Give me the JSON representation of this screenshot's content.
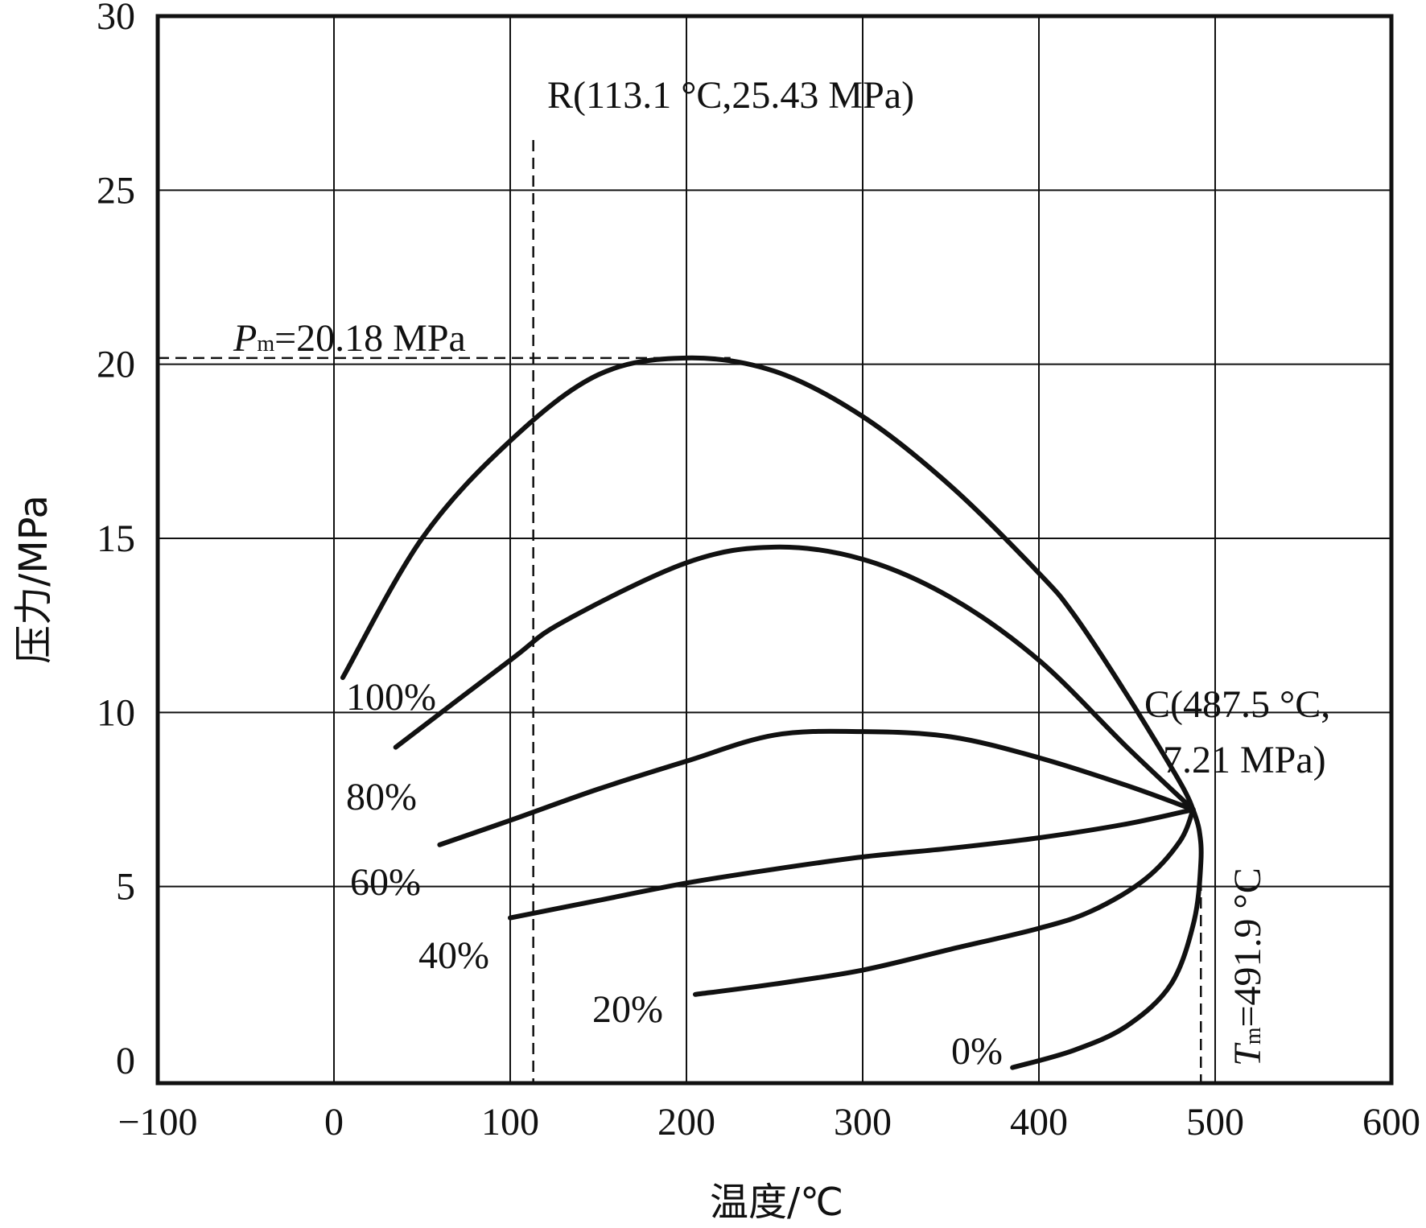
{
  "chart_data": {
    "type": "line",
    "xlabel": "温度/℃",
    "ylabel": "压力/MPa",
    "xlim": [
      -100,
      600
    ],
    "ylim": [
      -0.5,
      30
    ],
    "x_ticks": [
      {
        "value": -100,
        "label": "−100"
      },
      {
        "value": 0,
        "label": "0"
      },
      {
        "value": 100,
        "label": "100"
      },
      {
        "value": 200,
        "label": "200"
      },
      {
        "value": 300,
        "label": "300"
      },
      {
        "value": 400,
        "label": "400"
      },
      {
        "value": 500,
        "label": "500"
      },
      {
        "value": 600,
        "label": "600"
      }
    ],
    "y_ticks": [
      {
        "value": 0,
        "label": "0"
      },
      {
        "value": 5,
        "label": "5"
      },
      {
        "value": 10,
        "label": "10"
      },
      {
        "value": 15,
        "label": "15"
      },
      {
        "value": 20,
        "label": "20"
      },
      {
        "value": 25,
        "label": "25"
      },
      {
        "value": 30,
        "label": "30"
      }
    ],
    "grid": true,
    "series": [
      {
        "name": "100%",
        "x": [
          5,
          50,
          100,
          150,
          200,
          250,
          300,
          350,
          400,
          420,
          450,
          480,
          487.5
        ],
        "y": [
          11.0,
          15.0,
          17.8,
          19.7,
          20.18,
          19.8,
          18.5,
          16.5,
          14.0,
          12.8,
          10.5,
          8.0,
          7.21
        ]
      },
      {
        "name": "80%",
        "x": [
          35,
          100,
          130,
          200,
          250,
          300,
          350,
          400,
          450,
          487.5
        ],
        "y": [
          9.0,
          11.5,
          12.6,
          14.3,
          14.75,
          14.4,
          13.3,
          11.5,
          9.0,
          7.21
        ]
      },
      {
        "name": "60%",
        "x": [
          60,
          100,
          150,
          200,
          250,
          300,
          350,
          400,
          450,
          487.5
        ],
        "y": [
          6.2,
          6.9,
          7.8,
          8.6,
          9.35,
          9.45,
          9.3,
          8.7,
          7.9,
          7.21
        ]
      },
      {
        "name": "40%",
        "x": [
          100,
          150,
          200,
          250,
          300,
          350,
          400,
          450,
          487.5
        ],
        "y": [
          4.1,
          4.6,
          5.1,
          5.5,
          5.85,
          6.1,
          6.4,
          6.8,
          7.21
        ]
      },
      {
        "name": "20%",
        "x": [
          205,
          250,
          300,
          350,
          400,
          430,
          460,
          480,
          487.5
        ],
        "y": [
          1.9,
          2.2,
          2.6,
          3.2,
          3.8,
          4.3,
          5.2,
          6.3,
          7.21
        ]
      },
      {
        "name": "0%",
        "x": [
          385,
          420,
          450,
          475,
          488,
          491.9,
          491,
          487.5
        ],
        "y": [
          -0.2,
          0.3,
          1.0,
          2.2,
          4.0,
          5.7,
          6.6,
          7.21
        ]
      }
    ],
    "annotations": {
      "R": {
        "text": "R(113.1 °C,25.43 MPa)",
        "x": 113.1,
        "y": 25.43
      },
      "Pm": {
        "symbol": "P",
        "subscript": "m",
        "value_text": "=20.18 MPa",
        "y": 20.18
      },
      "C_line1": "C(487.5 °C,",
      "C_line2": "7.21 MPa)",
      "C": {
        "x": 487.5,
        "y": 7.21
      },
      "Tm": {
        "symbol": "T",
        "subscript": "m",
        "value_text": "=491.9 °C",
        "x": 491.9
      }
    }
  }
}
